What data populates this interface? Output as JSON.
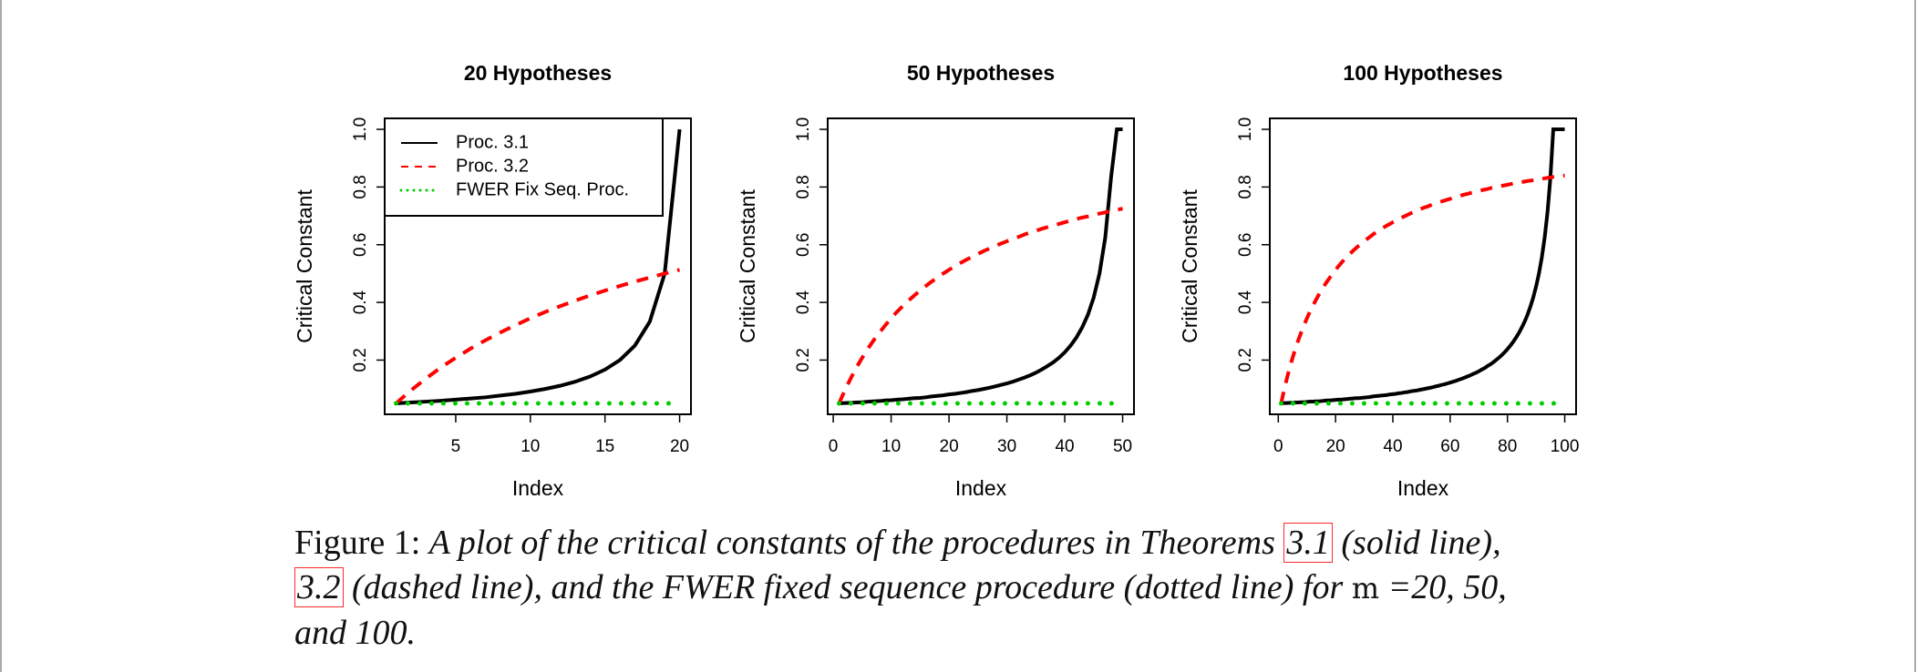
{
  "chart_data": [
    {
      "type": "line",
      "title": "20 Hypotheses",
      "xlabel": "Index",
      "ylabel": "Critical Constant",
      "x": [
        1,
        2,
        3,
        4,
        5,
        6,
        7,
        8,
        9,
        10,
        11,
        12,
        13,
        14,
        15,
        16,
        17,
        18,
        19,
        20
      ],
      "xlim": [
        0.24,
        20.76
      ],
      "xticks": [
        5,
        10,
        15,
        20
      ],
      "ylim": [
        0.012,
        1.038
      ],
      "yticks": [
        0.2,
        0.4,
        0.6,
        0.8,
        {
          "value": 1,
          "label": "1.0"
        }
      ],
      "legend": "top-left",
      "series": [
        {
          "name": "Proc. 3.1",
          "color": "#000000",
          "dash": "solid",
          "values": [
            0.05,
            0.053,
            0.056,
            0.059,
            0.063,
            0.067,
            0.071,
            0.077,
            0.083,
            0.091,
            0.1,
            0.111,
            0.125,
            0.143,
            0.167,
            0.2,
            0.25,
            0.333,
            0.5,
            1
          ]
        },
        {
          "name": "Proc. 3.2",
          "color": "#ff0000",
          "dash": "dashed",
          "values": [
            0.05,
            0.095,
            0.136,
            0.174,
            0.208,
            0.24,
            0.269,
            0.296,
            0.321,
            0.345,
            0.367,
            0.387,
            0.406,
            0.424,
            0.441,
            0.457,
            0.472,
            0.486,
            0.5,
            0.513
          ]
        },
        {
          "name": "FWER Fix Seq. Proc.",
          "color": "#00cd00",
          "dash": "dotted",
          "values": [
            0.05,
            0.05,
            0.05,
            0.05,
            0.05,
            0.05,
            0.05,
            0.05,
            0.05,
            0.05,
            0.05,
            0.05,
            0.05,
            0.05,
            0.05,
            0.05,
            0.05,
            0.05,
            0.05,
            0.05
          ]
        }
      ]
    },
    {
      "type": "line",
      "title": "50 Hypotheses",
      "xlabel": "Index",
      "ylabel": "Critical Constant",
      "x": [
        1,
        2,
        3,
        4,
        5,
        6,
        7,
        8,
        9,
        10,
        11,
        12,
        13,
        14,
        15,
        16,
        17,
        18,
        19,
        20,
        21,
        22,
        23,
        24,
        25,
        26,
        27,
        28,
        29,
        30,
        31,
        32,
        33,
        34,
        35,
        36,
        37,
        38,
        39,
        40,
        41,
        42,
        43,
        44,
        45,
        46,
        47,
        48,
        49,
        50
      ],
      "xlim": [
        -0.96,
        51.96
      ],
      "xticks": [
        0,
        10,
        20,
        30,
        40,
        50
      ],
      "ylim": [
        0.012,
        1.038
      ],
      "yticks": [
        0.2,
        0.4,
        0.6,
        0.8,
        {
          "value": 1,
          "label": "1.0"
        }
      ],
      "series": [
        {
          "color": "#000000",
          "dash": "solid",
          "values": [
            0.05,
            0.051,
            0.052,
            0.053,
            0.054,
            0.056,
            0.057,
            0.058,
            0.06,
            0.061,
            0.063,
            0.064,
            0.066,
            0.068,
            0.069,
            0.071,
            0.074,
            0.076,
            0.078,
            0.081,
            0.083,
            0.086,
            0.089,
            0.093,
            0.096,
            0.1,
            0.104,
            0.109,
            0.114,
            0.119,
            0.125,
            0.132,
            0.139,
            0.147,
            0.156,
            0.167,
            0.179,
            0.192,
            0.208,
            0.227,
            0.25,
            0.278,
            0.313,
            0.357,
            0.417,
            0.5,
            0.625,
            0.833,
            1,
            1
          ]
        },
        {
          "color": "#ff0000",
          "dash": "dashed",
          "values": [
            0.05,
            0.095,
            0.136,
            0.174,
            0.208,
            0.24,
            0.269,
            0.296,
            0.321,
            0.345,
            0.367,
            0.387,
            0.406,
            0.424,
            0.441,
            0.457,
            0.472,
            0.486,
            0.5,
            0.513,
            0.525,
            0.537,
            0.548,
            0.558,
            0.568,
            0.578,
            0.587,
            0.596,
            0.604,
            0.612,
            0.62,
            0.627,
            0.635,
            0.642,
            0.648,
            0.655,
            0.661,
            0.667,
            0.672,
            0.678,
            0.683,
            0.689,
            0.694,
            0.698,
            0.703,
            0.708,
            0.712,
            0.716,
            0.721,
            0.725
          ]
        },
        {
          "color": "#00cd00",
          "dash": "dotted",
          "values": [
            0.05,
            0.05,
            0.05,
            0.05,
            0.05,
            0.05,
            0.05,
            0.05,
            0.05,
            0.05,
            0.05,
            0.05,
            0.05,
            0.05,
            0.05,
            0.05,
            0.05,
            0.05,
            0.05,
            0.05,
            0.05,
            0.05,
            0.05,
            0.05,
            0.05,
            0.05,
            0.05,
            0.05,
            0.05,
            0.05,
            0.05,
            0.05,
            0.05,
            0.05,
            0.05,
            0.05,
            0.05,
            0.05,
            0.05,
            0.05,
            0.05,
            0.05,
            0.05,
            0.05,
            0.05,
            0.05,
            0.05,
            0.05,
            0.05,
            0.05
          ]
        }
      ]
    },
    {
      "type": "line",
      "title": "100 Hypotheses",
      "xlabel": "Index",
      "ylabel": "Critical Constant",
      "x": [
        1,
        2,
        3,
        4,
        5,
        6,
        7,
        8,
        9,
        10,
        11,
        12,
        13,
        14,
        15,
        16,
        17,
        18,
        19,
        20,
        21,
        22,
        23,
        24,
        25,
        26,
        27,
        28,
        29,
        30,
        31,
        32,
        33,
        34,
        35,
        36,
        37,
        38,
        39,
        40,
        41,
        42,
        43,
        44,
        45,
        46,
        47,
        48,
        49,
        50,
        51,
        52,
        53,
        54,
        55,
        56,
        57,
        58,
        59,
        60,
        61,
        62,
        63,
        64,
        65,
        66,
        67,
        68,
        69,
        70,
        71,
        72,
        73,
        74,
        75,
        76,
        77,
        78,
        79,
        80,
        81,
        82,
        83,
        84,
        85,
        86,
        87,
        88,
        89,
        90,
        91,
        92,
        93,
        94,
        95,
        96,
        97,
        98,
        99,
        100
      ],
      "xlim": [
        -2.96,
        103.96
      ],
      "xticks": [
        0,
        20,
        40,
        60,
        80,
        100
      ],
      "ylim": [
        0.012,
        1.038
      ],
      "yticks": [
        0.2,
        0.4,
        0.6,
        0.8,
        {
          "value": 1,
          "label": "1.0"
        }
      ],
      "series": [
        {
          "color": "#000000",
          "dash": "solid",
          "values": [
            0.05,
            0.051,
            0.051,
            0.052,
            0.052,
            0.053,
            0.053,
            0.054,
            0.054,
            0.055,
            0.056,
            0.056,
            0.057,
            0.057,
            0.058,
            0.059,
            0.06,
            0.06,
            0.061,
            0.062,
            0.063,
            0.063,
            0.064,
            0.065,
            0.066,
            0.067,
            0.068,
            0.068,
            0.069,
            0.07,
            0.071,
            0.072,
            0.074,
            0.075,
            0.076,
            0.077,
            0.078,
            0.079,
            0.081,
            0.082,
            0.083,
            0.085,
            0.086,
            0.088,
            0.089,
            0.091,
            0.093,
            0.094,
            0.096,
            0.098,
            0.1,
            0.102,
            0.104,
            0.106,
            0.109,
            0.111,
            0.114,
            0.116,
            0.119,
            0.122,
            0.125,
            0.128,
            0.132,
            0.135,
            0.139,
            0.143,
            0.147,
            0.152,
            0.156,
            0.161,
            0.167,
            0.172,
            0.179,
            0.185,
            0.192,
            0.2,
            0.208,
            0.217,
            0.227,
            0.238,
            0.25,
            0.263,
            0.278,
            0.294,
            0.313,
            0.333,
            0.357,
            0.385,
            0.417,
            0.455,
            0.5,
            0.556,
            0.625,
            0.714,
            0.833,
            1,
            1,
            1,
            1,
            1
          ]
        },
        {
          "color": "#ff0000",
          "dash": "dashed",
          "values": [
            0.05,
            0.095,
            0.136,
            0.174,
            0.208,
            0.24,
            0.269,
            0.296,
            0.321,
            0.345,
            0.367,
            0.387,
            0.406,
            0.424,
            0.441,
            0.457,
            0.472,
            0.486,
            0.5,
            0.513,
            0.525,
            0.537,
            0.548,
            0.558,
            0.568,
            0.578,
            0.587,
            0.596,
            0.604,
            0.612,
            0.62,
            0.627,
            0.635,
            0.642,
            0.648,
            0.655,
            0.661,
            0.667,
            0.672,
            0.678,
            0.683,
            0.689,
            0.694,
            0.698,
            0.703,
            0.708,
            0.712,
            0.716,
            0.721,
            0.725,
            0.729,
            0.732,
            0.736,
            0.74,
            0.743,
            0.747,
            0.75,
            0.753,
            0.756,
            0.759,
            0.763,
            0.765,
            0.768,
            0.771,
            0.774,
            0.776,
            0.779,
            0.782,
            0.784,
            0.787,
            0.789,
            0.791,
            0.793,
            0.796,
            0.798,
            0.8,
            0.802,
            0.804,
            0.806,
            0.808,
            0.81,
            0.812,
            0.814,
            0.816,
            0.817,
            0.819,
            0.821,
            0.822,
            0.824,
            0.826,
            0.827,
            0.829,
            0.83,
            0.832,
            0.833,
            0.835,
            0.836,
            0.838,
            0.839,
            0.84
          ]
        },
        {
          "color": "#00cd00",
          "dash": "dotted",
          "values": [
            0.05,
            0.05,
            0.05,
            0.05,
            0.05,
            0.05,
            0.05,
            0.05,
            0.05,
            0.05,
            0.05,
            0.05,
            0.05,
            0.05,
            0.05,
            0.05,
            0.05,
            0.05,
            0.05,
            0.05,
            0.05,
            0.05,
            0.05,
            0.05,
            0.05,
            0.05,
            0.05,
            0.05,
            0.05,
            0.05,
            0.05,
            0.05,
            0.05,
            0.05,
            0.05,
            0.05,
            0.05,
            0.05,
            0.05,
            0.05,
            0.05,
            0.05,
            0.05,
            0.05,
            0.05,
            0.05,
            0.05,
            0.05,
            0.05,
            0.05,
            0.05,
            0.05,
            0.05,
            0.05,
            0.05,
            0.05,
            0.05,
            0.05,
            0.05,
            0.05,
            0.05,
            0.05,
            0.05,
            0.05,
            0.05,
            0.05,
            0.05,
            0.05,
            0.05,
            0.05,
            0.05,
            0.05,
            0.05,
            0.05,
            0.05,
            0.05,
            0.05,
            0.05,
            0.05,
            0.05,
            0.05,
            0.05,
            0.05,
            0.05,
            0.05,
            0.05,
            0.05,
            0.05,
            0.05,
            0.05,
            0.05,
            0.05,
            0.05,
            0.05,
            0.05,
            0.05,
            0.05,
            0.05,
            0.05,
            0.05
          ]
        }
      ]
    }
  ],
  "caption": {
    "label": "Figure 1:",
    "part1": "A plot of the critical constants of the procedures in Theorems",
    "ref1": "3.1",
    "part2": "(solid line),",
    "ref2": "3.2",
    "part3": "(dashed line), and the FWER fixed sequence procedure (dotted line) for",
    "math": "m",
    "part4": "=20, 50,",
    "part5": "and 100."
  }
}
